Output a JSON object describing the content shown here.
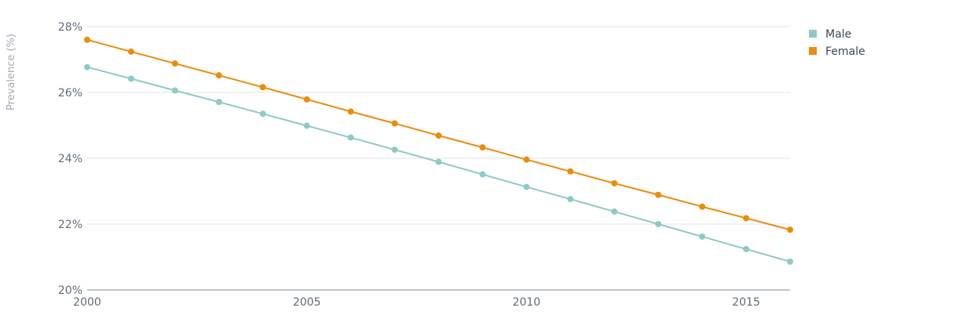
{
  "chart_data": {
    "type": "line",
    "title": "",
    "xlabel": "",
    "ylabel": "Prevalence (%)",
    "x": [
      2000,
      2001,
      2002,
      2003,
      2004,
      2005,
      2006,
      2007,
      2008,
      2009,
      2010,
      2011,
      2012,
      2013,
      2014,
      2015,
      2016
    ],
    "x_ticks": [
      "2000",
      "2005",
      "2010",
      "2015"
    ],
    "y_ticks": [
      "20%",
      "22%",
      "24%",
      "26%",
      "28%"
    ],
    "ylim": [
      20,
      28
    ],
    "grid": true,
    "legend_position": "top-right",
    "series": [
      {
        "name": "Male",
        "color": "#8fc9c6",
        "values": [
          26.77,
          26.42,
          26.06,
          25.71,
          25.35,
          24.99,
          24.63,
          24.26,
          23.89,
          23.51,
          23.13,
          22.76,
          22.38,
          22.0,
          21.62,
          21.24,
          20.86
        ]
      },
      {
        "name": "Female",
        "color": "#ea8c0c",
        "values": [
          27.6,
          27.24,
          26.88,
          26.52,
          26.16,
          25.79,
          25.42,
          25.06,
          24.69,
          24.33,
          23.96,
          23.6,
          23.24,
          22.89,
          22.53,
          22.18,
          21.83
        ]
      }
    ]
  }
}
